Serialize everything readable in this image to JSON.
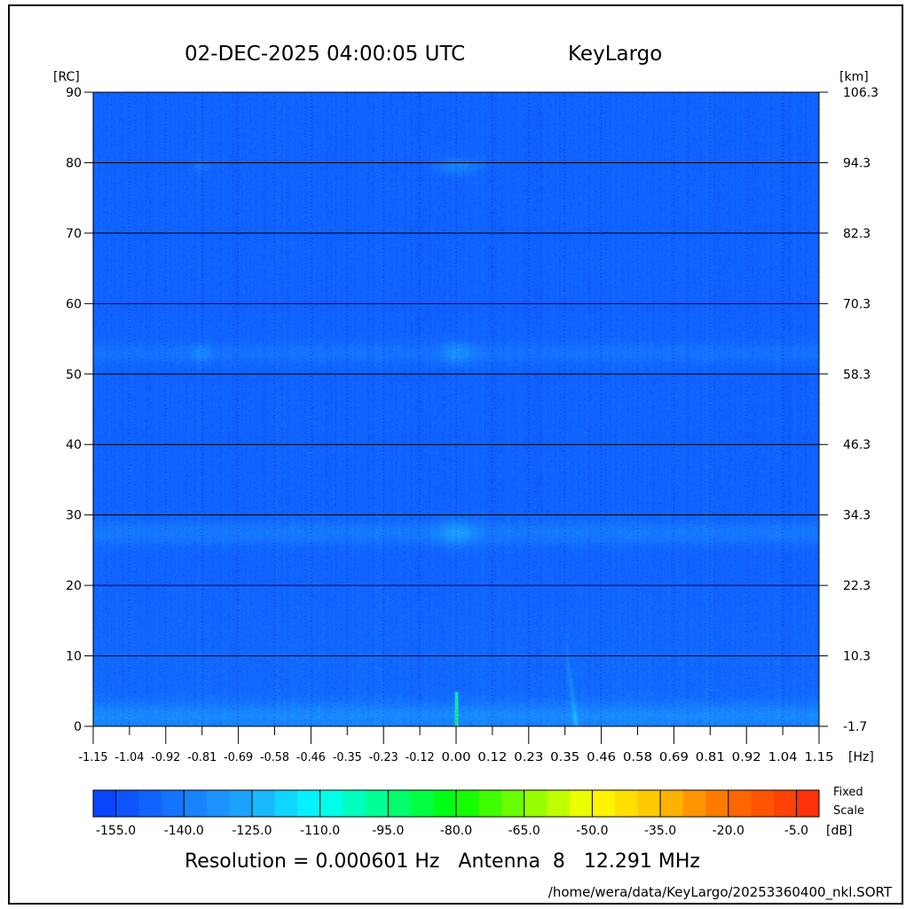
{
  "chart_data": {
    "type": "heatmap",
    "title_datetime": "02-DEC-2025 04:00:05 UTC",
    "title_station": "KeyLargo",
    "xlabel_unit": "[Hz]",
    "ylabel_left_unit": "[RC]",
    "ylabel_right_unit": "[km]",
    "xlim": [
      -1.15,
      1.15
    ],
    "ylim": [
      0,
      90
    ],
    "x_ticks": [
      "-1.15",
      "-1.04",
      "-0.92",
      "-0.81",
      "-0.69",
      "-0.58",
      "-0.46",
      "-0.35",
      "-0.23",
      "-0.12",
      "0.00",
      "0.12",
      "0.23",
      "0.35",
      "0.46",
      "0.58",
      "0.69",
      "0.81",
      "0.92",
      "1.04",
      "1.15"
    ],
    "y_ticks_left": [
      "0",
      "10",
      "20",
      "30",
      "40",
      "50",
      "60",
      "70",
      "80",
      "90"
    ],
    "y_ticks_right": [
      "-1.7",
      "10.3",
      "22.3",
      "34.3",
      "46.3",
      "58.3",
      "70.3",
      "82.3",
      "94.3",
      "106.3"
    ],
    "grid": true,
    "colorbar": {
      "range_db": [
        -160,
        0
      ],
      "step_db": 5,
      "tick_labels": [
        "-155.0",
        "-140.0",
        "-125.0",
        "-110.0",
        "-95.0",
        "-80.0",
        "-65.0",
        "-50.0",
        "-35.0",
        "-20.0",
        "-5.0"
      ],
      "unit": "[dB]",
      "note_line1": "Fixed",
      "note_line2": "Scale"
    }
  },
  "footer": {
    "resolution": "Resolution = 0.000601 Hz   Antenna  8   12.291 MHz",
    "path": "/home/wera/data/KeyLargo/20253360400_nkl.SORT"
  }
}
